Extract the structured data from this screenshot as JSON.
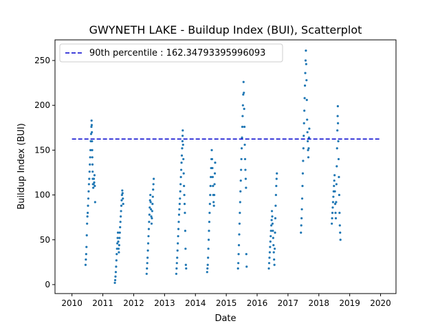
{
  "chart_data": {
    "type": "scatter",
    "title": "GWYNETH LAKE - Buildup Index (BUI), Scatterplot",
    "xlabel": "Date",
    "ylabel": "Buildup Index (BUI)",
    "xlim": [
      2009.45,
      2020.5
    ],
    "ylim": [
      -10,
      273
    ],
    "x_ticks": [
      "2010",
      "2011",
      "2012",
      "2013",
      "2014",
      "2015",
      "2016",
      "2017",
      "2018",
      "2019",
      "2020"
    ],
    "y_ticks": [
      "0",
      "50",
      "100",
      "150",
      "200",
      "250"
    ],
    "grid": false,
    "legend_position": "top-left",
    "point_color": "#1f77b4",
    "reference_line": {
      "label": "90th percentile : 162.34793395996093",
      "value": 162.34793395996093,
      "x_range": [
        2010.0,
        2020.0
      ],
      "color": "#0000cd",
      "style": "dashed"
    },
    "seasons": [
      {
        "year": "2010",
        "points": [
          [
            2010.44,
            22
          ],
          [
            2010.45,
            28
          ],
          [
            2010.46,
            34
          ],
          [
            2010.47,
            42
          ],
          [
            2010.48,
            55
          ],
          [
            2010.49,
            68
          ],
          [
            2010.5,
            76
          ],
          [
            2010.51,
            80
          ],
          [
            2010.52,
            88
          ],
          [
            2010.53,
            96
          ],
          [
            2010.54,
            104
          ],
          [
            2010.55,
            112
          ],
          [
            2010.56,
            118
          ],
          [
            2010.57,
            126
          ],
          [
            2010.58,
            134
          ],
          [
            2010.59,
            142
          ],
          [
            2010.6,
            150
          ],
          [
            2010.61,
            160
          ],
          [
            2010.62,
            168
          ],
          [
            2010.63,
            176
          ],
          [
            2010.635,
            183
          ],
          [
            2010.64,
            178
          ],
          [
            2010.645,
            170
          ],
          [
            2010.65,
            160
          ],
          [
            2010.655,
            150
          ],
          [
            2010.66,
            142
          ],
          [
            2010.665,
            134
          ],
          [
            2010.67,
            126
          ],
          [
            2010.675,
            118
          ],
          [
            2010.68,
            112
          ],
          [
            2010.69,
            108
          ],
          [
            2010.7,
            112
          ],
          [
            2010.71,
            118
          ],
          [
            2010.72,
            114
          ],
          [
            2010.73,
            122
          ],
          [
            2010.74,
            110
          ],
          [
            2010.75,
            92
          ]
        ]
      },
      {
        "year": "2011",
        "points": [
          [
            2011.39,
            2
          ],
          [
            2011.4,
            5
          ],
          [
            2011.41,
            9
          ],
          [
            2011.42,
            14
          ],
          [
            2011.43,
            20
          ],
          [
            2011.44,
            27
          ],
          [
            2011.45,
            34
          ],
          [
            2011.46,
            40
          ],
          [
            2011.47,
            46
          ],
          [
            2011.48,
            52
          ],
          [
            2011.49,
            58
          ],
          [
            2011.5,
            48
          ],
          [
            2011.51,
            40
          ],
          [
            2011.52,
            36
          ],
          [
            2011.53,
            44
          ],
          [
            2011.54,
            52
          ],
          [
            2011.55,
            58
          ],
          [
            2011.56,
            64
          ],
          [
            2011.57,
            70
          ],
          [
            2011.58,
            76
          ],
          [
            2011.59,
            82
          ],
          [
            2011.6,
            88
          ],
          [
            2011.61,
            94
          ],
          [
            2011.62,
            100
          ],
          [
            2011.63,
            105
          ],
          [
            2011.64,
            102
          ],
          [
            2011.65,
            96
          ],
          [
            2011.66,
            90
          ]
        ]
      },
      {
        "year": "2012",
        "points": [
          [
            2012.42,
            12
          ],
          [
            2012.43,
            18
          ],
          [
            2012.44,
            24
          ],
          [
            2012.45,
            30
          ],
          [
            2012.46,
            38
          ],
          [
            2012.47,
            46
          ],
          [
            2012.48,
            54
          ],
          [
            2012.49,
            62
          ],
          [
            2012.5,
            70
          ],
          [
            2012.51,
            78
          ],
          [
            2012.52,
            86
          ],
          [
            2012.53,
            94
          ],
          [
            2012.54,
            100
          ],
          [
            2012.55,
            92
          ],
          [
            2012.56,
            84
          ],
          [
            2012.57,
            76
          ],
          [
            2012.58,
            68
          ],
          [
            2012.59,
            74
          ],
          [
            2012.6,
            82
          ],
          [
            2012.61,
            90
          ],
          [
            2012.62,
            98
          ],
          [
            2012.63,
            106
          ],
          [
            2012.64,
            112
          ],
          [
            2012.65,
            118
          ]
        ]
      },
      {
        "year": "2013",
        "points": [
          [
            2013.38,
            12
          ],
          [
            2013.39,
            18
          ],
          [
            2013.4,
            24
          ],
          [
            2013.41,
            30
          ],
          [
            2013.42,
            38
          ],
          [
            2013.43,
            46
          ],
          [
            2013.44,
            54
          ],
          [
            2013.45,
            62
          ],
          [
            2013.46,
            70
          ],
          [
            2013.47,
            78
          ],
          [
            2013.48,
            84
          ],
          [
            2013.49,
            90
          ],
          [
            2013.5,
            96
          ],
          [
            2013.51,
            104
          ],
          [
            2013.52,
            112
          ],
          [
            2013.53,
            120
          ],
          [
            2013.54,
            128
          ],
          [
            2013.55,
            136
          ],
          [
            2013.56,
            144
          ],
          [
            2013.57,
            152
          ],
          [
            2013.58,
            160
          ],
          [
            2013.585,
            166
          ],
          [
            2013.59,
            172
          ],
          [
            2013.6,
            156
          ],
          [
            2013.61,
            140
          ],
          [
            2013.62,
            124
          ],
          [
            2013.63,
            110
          ],
          [
            2013.64,
            100
          ],
          [
            2013.65,
            90
          ],
          [
            2013.66,
            80
          ],
          [
            2013.67,
            60
          ],
          [
            2013.68,
            40
          ],
          [
            2013.69,
            22
          ],
          [
            2013.7,
            18
          ]
        ]
      },
      {
        "year": "2014",
        "points": [
          [
            2014.38,
            14
          ],
          [
            2014.39,
            18
          ],
          [
            2014.4,
            22
          ],
          [
            2014.41,
            30
          ],
          [
            2014.42,
            40
          ],
          [
            2014.43,
            50
          ],
          [
            2014.44,
            60
          ],
          [
            2014.45,
            70
          ],
          [
            2014.46,
            80
          ],
          [
            2014.47,
            90
          ],
          [
            2014.48,
            100
          ],
          [
            2014.49,
            110
          ],
          [
            2014.5,
            120
          ],
          [
            2014.51,
            130
          ],
          [
            2014.52,
            140
          ],
          [
            2014.53,
            150
          ],
          [
            2014.54,
            140
          ],
          [
            2014.55,
            130
          ],
          [
            2014.56,
            120
          ],
          [
            2014.57,
            110
          ],
          [
            2014.58,
            100
          ],
          [
            2014.59,
            92
          ],
          [
            2014.6,
            88
          ],
          [
            2014.61,
            100
          ],
          [
            2014.62,
            112
          ],
          [
            2014.63,
            124
          ],
          [
            2014.64,
            136
          ]
        ]
      },
      {
        "year": "2015",
        "points": [
          [
            2015.38,
            18
          ],
          [
            2015.39,
            24
          ],
          [
            2015.4,
            34
          ],
          [
            2015.41,
            44
          ],
          [
            2015.42,
            56
          ],
          [
            2015.43,
            68
          ],
          [
            2015.44,
            80
          ],
          [
            2015.45,
            92
          ],
          [
            2015.46,
            104
          ],
          [
            2015.47,
            116
          ],
          [
            2015.48,
            128
          ],
          [
            2015.49,
            140
          ],
          [
            2015.5,
            152
          ],
          [
            2015.51,
            164
          ],
          [
            2015.52,
            176
          ],
          [
            2015.53,
            188
          ],
          [
            2015.54,
            200
          ],
          [
            2015.55,
            212
          ],
          [
            2015.56,
            226
          ],
          [
            2015.57,
            214
          ],
          [
            2015.58,
            196
          ],
          [
            2015.59,
            176
          ],
          [
            2015.6,
            156
          ],
          [
            2015.61,
            140
          ],
          [
            2015.62,
            128
          ],
          [
            2015.63,
            118
          ],
          [
            2015.64,
            108
          ],
          [
            2015.65,
            34
          ],
          [
            2015.66,
            20
          ]
        ]
      },
      {
        "year": "2016",
        "points": [
          [
            2016.38,
            18
          ],
          [
            2016.39,
            24
          ],
          [
            2016.4,
            30
          ],
          [
            2016.41,
            36
          ],
          [
            2016.42,
            42
          ],
          [
            2016.43,
            48
          ],
          [
            2016.44,
            54
          ],
          [
            2016.45,
            60
          ],
          [
            2016.46,
            66
          ],
          [
            2016.47,
            72
          ],
          [
            2016.48,
            82
          ],
          [
            2016.49,
            76
          ],
          [
            2016.5,
            68
          ],
          [
            2016.51,
            60
          ],
          [
            2016.52,
            52
          ],
          [
            2016.53,
            44
          ],
          [
            2016.54,
            36
          ],
          [
            2016.55,
            28
          ],
          [
            2016.56,
            22
          ],
          [
            2016.57,
            40
          ],
          [
            2016.58,
            58
          ],
          [
            2016.59,
            74
          ],
          [
            2016.6,
            88
          ],
          [
            2016.61,
            100
          ],
          [
            2016.62,
            110
          ],
          [
            2016.63,
            118
          ],
          [
            2016.64,
            124
          ]
        ]
      },
      {
        "year": "2017",
        "points": [
          [
            2017.42,
            58
          ],
          [
            2017.43,
            66
          ],
          [
            2017.44,
            74
          ],
          [
            2017.45,
            84
          ],
          [
            2017.46,
            96
          ],
          [
            2017.47,
            110
          ],
          [
            2017.48,
            124
          ],
          [
            2017.49,
            138
          ],
          [
            2017.5,
            152
          ],
          [
            2017.51,
            166
          ],
          [
            2017.52,
            180
          ],
          [
            2017.53,
            194
          ],
          [
            2017.54,
            208
          ],
          [
            2017.55,
            222
          ],
          [
            2017.56,
            236
          ],
          [
            2017.57,
            250
          ],
          [
            2017.58,
            261
          ],
          [
            2017.59,
            246
          ],
          [
            2017.6,
            228
          ],
          [
            2017.61,
            206
          ],
          [
            2017.62,
            184
          ],
          [
            2017.63,
            170
          ],
          [
            2017.64,
            160
          ],
          [
            2017.65,
            150
          ],
          [
            2017.66,
            142
          ],
          [
            2017.67,
            152
          ],
          [
            2017.68,
            164
          ],
          [
            2017.69,
            174
          ]
        ]
      },
      {
        "year": "2018",
        "points": [
          [
            2018.42,
            68
          ],
          [
            2018.43,
            74
          ],
          [
            2018.44,
            80
          ],
          [
            2018.45,
            86
          ],
          [
            2018.46,
            92
          ],
          [
            2018.47,
            98
          ],
          [
            2018.48,
            104
          ],
          [
            2018.49,
            110
          ],
          [
            2018.5,
            116
          ],
          [
            2018.51,
            122
          ],
          [
            2018.52,
            104
          ],
          [
            2018.53,
            90
          ],
          [
            2018.54,
            80
          ],
          [
            2018.55,
            74
          ],
          [
            2018.56,
            92
          ],
          [
            2018.57,
            112
          ],
          [
            2018.58,
            132
          ],
          [
            2018.59,
            152
          ],
          [
            2018.6,
            172
          ],
          [
            2018.61,
            188
          ],
          [
            2018.615,
            199
          ],
          [
            2018.62,
            180
          ],
          [
            2018.63,
            160
          ],
          [
            2018.64,
            140
          ],
          [
            2018.65,
            120
          ],
          [
            2018.66,
            100
          ],
          [
            2018.67,
            80
          ],
          [
            2018.68,
            66
          ],
          [
            2018.69,
            58
          ],
          [
            2018.7,
            50
          ]
        ]
      }
    ]
  }
}
